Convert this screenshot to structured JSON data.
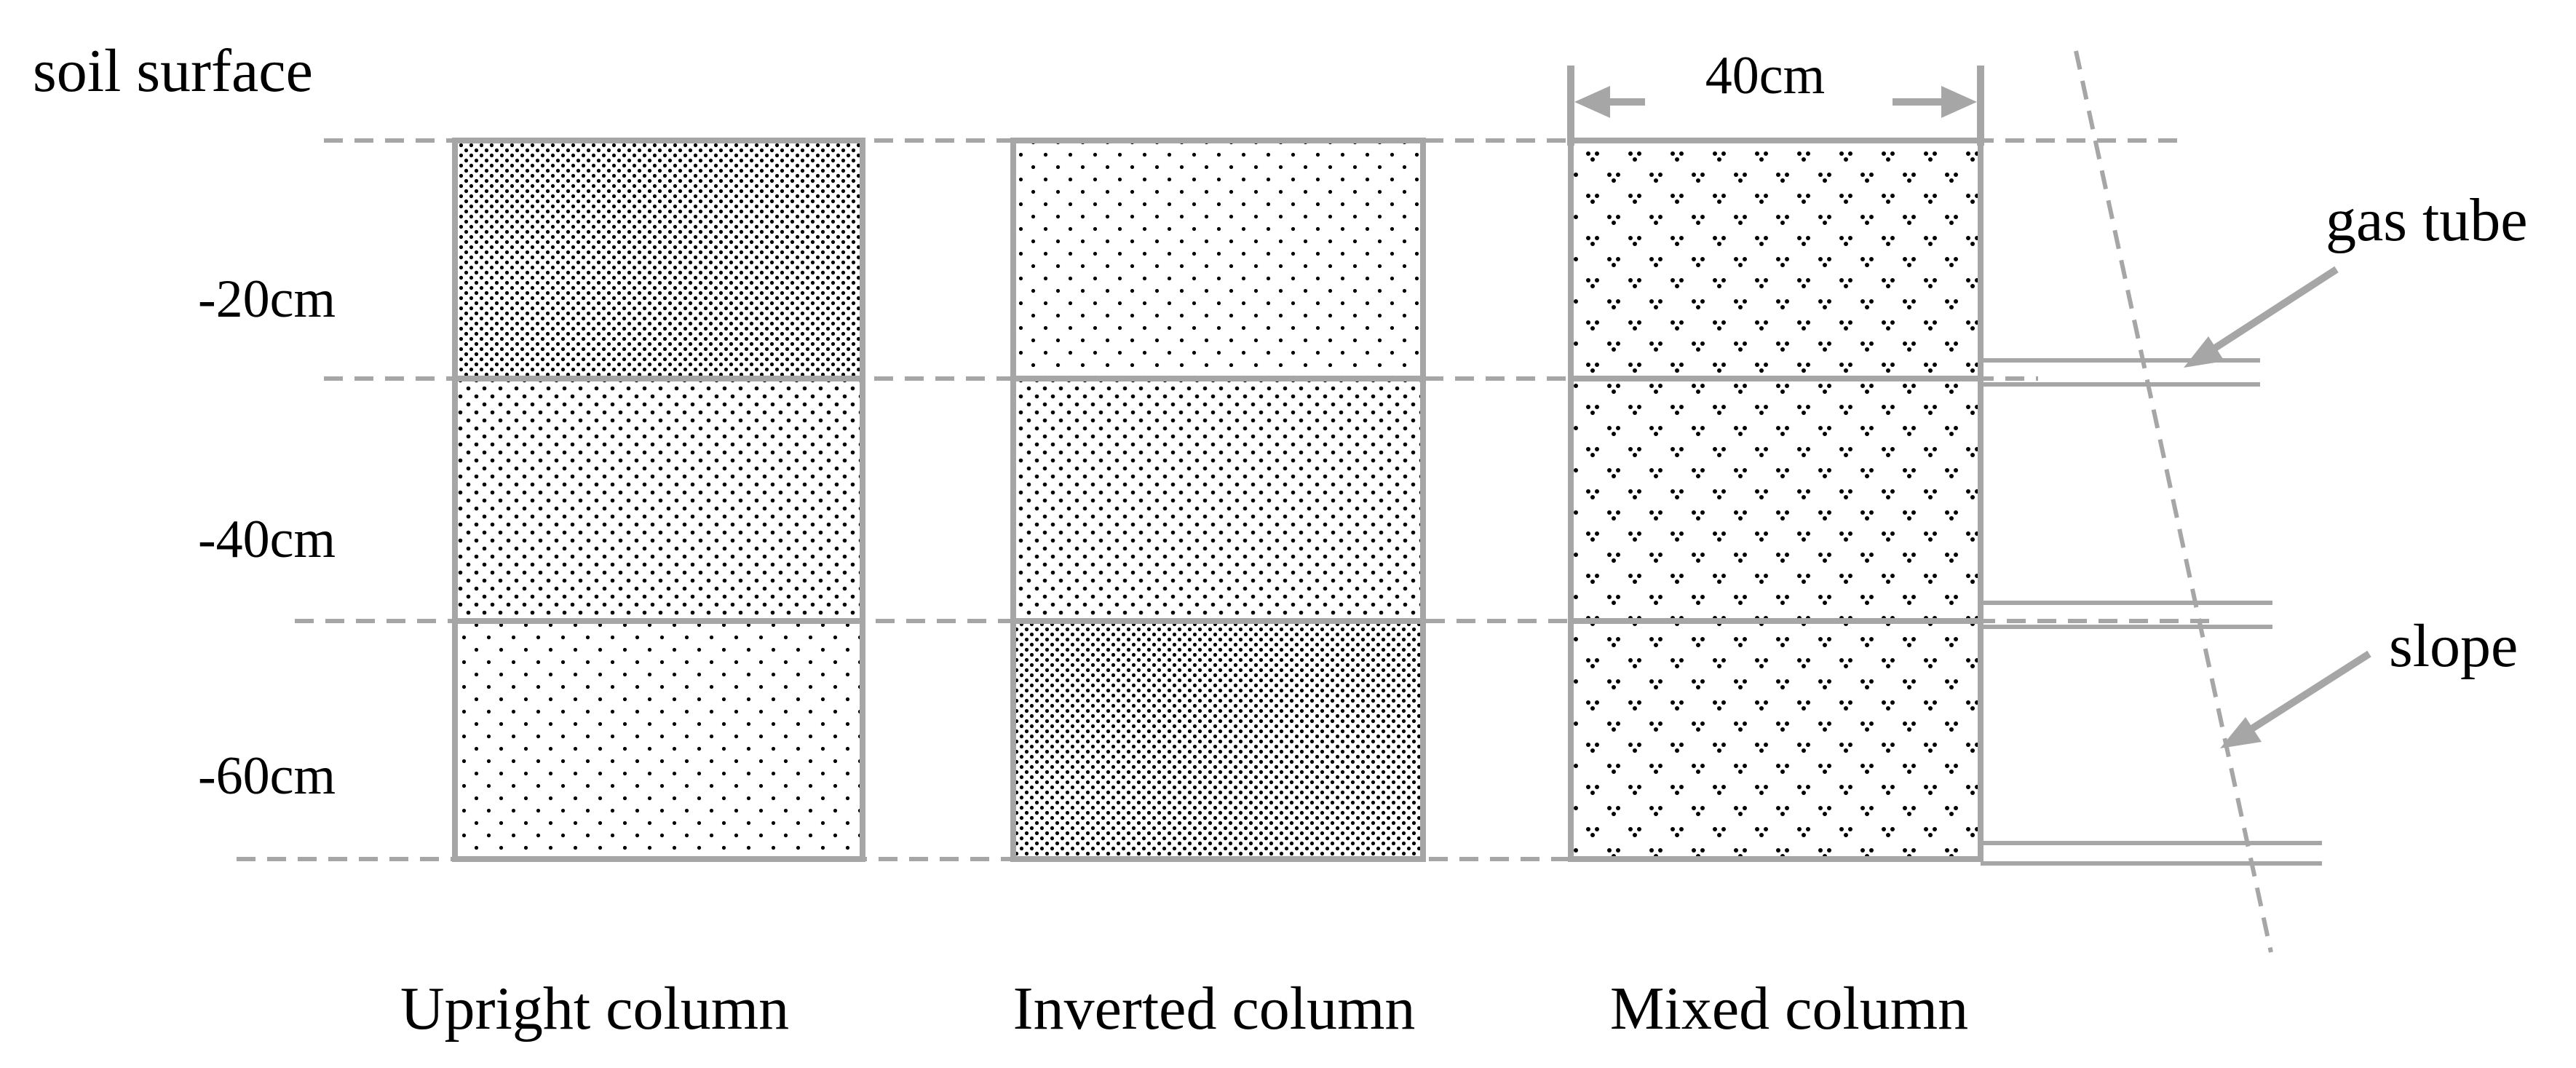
{
  "labels": {
    "soil_surface": "soil surface",
    "depth_20": "-20cm",
    "depth_40": "-40cm",
    "depth_60": "-60cm",
    "width": "40cm",
    "gas_tube": "gas tube",
    "slope": "slope"
  },
  "columns": [
    {
      "name": "Upright column",
      "layers": [
        "dense",
        "medium",
        "sparse"
      ]
    },
    {
      "name": "Inverted column",
      "layers": [
        "sparse",
        "medium",
        "dense"
      ]
    },
    {
      "name": "Mixed column",
      "layers": [
        "mixed",
        "mixed",
        "mixed"
      ]
    }
  ],
  "colors": {
    "lines": "#a6a6a6",
    "dots": "#000000"
  }
}
